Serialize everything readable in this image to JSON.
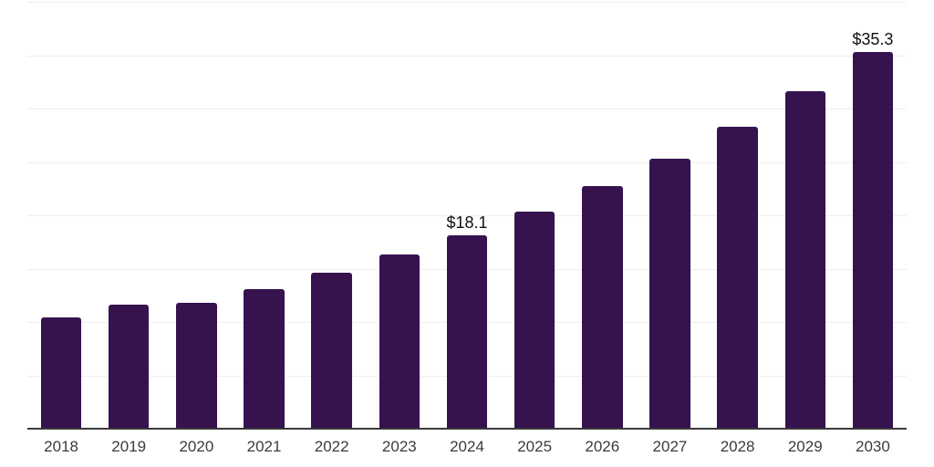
{
  "chart_data": {
    "type": "bar",
    "title": "",
    "xlabel": "",
    "ylabel": "",
    "categories": [
      "2018",
      "2019",
      "2020",
      "2021",
      "2022",
      "2023",
      "2024",
      "2025",
      "2026",
      "2027",
      "2028",
      "2029",
      "2030"
    ],
    "values": [
      10.4,
      11.6,
      11.8,
      13.1,
      14.6,
      16.3,
      18.1,
      20.3,
      22.7,
      25.3,
      28.3,
      31.6,
      35.3
    ],
    "annotations": [
      {
        "category": "2024",
        "text": "$18.1"
      },
      {
        "category": "2030",
        "text": "$35.3"
      }
    ],
    "ylim": [
      0,
      40
    ],
    "gridline_step": 5,
    "grid": true,
    "legend": false,
    "y_tick_labels_visible": false,
    "colors": {
      "bar": "#36124F",
      "grid": "#EEEEEE",
      "axis": "#3A3A3A",
      "tick_label": "#3B3B3B",
      "annotation": "#111111",
      "background": "#FFFFFF"
    }
  }
}
